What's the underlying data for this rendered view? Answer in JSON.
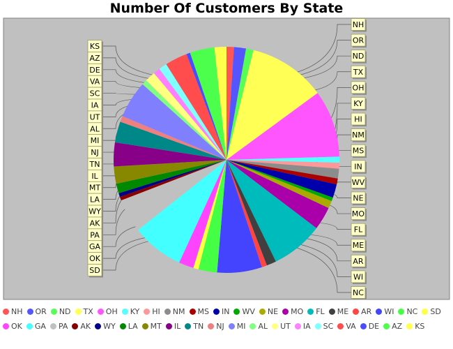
{
  "chart_data": {
    "type": "pie",
    "title": "Number Of Customers By State",
    "slices": [
      {
        "label": "NH",
        "value": 1.0,
        "color": "#ff5555"
      },
      {
        "label": "OR",
        "value": 1.6,
        "color": "#5555ff"
      },
      {
        "label": "ND",
        "value": 1.0,
        "color": "#55ff55"
      },
      {
        "label": "TX",
        "value": 10.4,
        "color": "#ffff55"
      },
      {
        "label": "OH",
        "value": 9.0,
        "color": "#ff55ff"
      },
      {
        "label": "KY",
        "value": 0.8,
        "color": "#55ffff"
      },
      {
        "label": "HI",
        "value": 0.8,
        "color": "#ff9999"
      },
      {
        "label": "NM",
        "value": 1.3,
        "color": "#8c8c8c"
      },
      {
        "label": "MS",
        "value": 0.8,
        "color": "#aa0000"
      },
      {
        "label": "IN",
        "value": 1.8,
        "color": "#0000aa"
      },
      {
        "label": "WV",
        "value": 0.5,
        "color": "#00aa00"
      },
      {
        "label": "NE",
        "value": 1.0,
        "color": "#aaaa00"
      },
      {
        "label": "MO",
        "value": 3.1,
        "color": "#aa00aa"
      },
      {
        "label": "FL",
        "value": 7.0,
        "color": "#00bbbb"
      },
      {
        "label": "ME",
        "value": 1.3,
        "color": "#404040"
      },
      {
        "label": "AR",
        "value": 0.7,
        "color": "#ff4444"
      },
      {
        "label": "WI",
        "value": 6.0,
        "color": "#4444ff"
      },
      {
        "label": "NC",
        "value": 2.5,
        "color": "#44ff44"
      },
      {
        "label": "SD",
        "value": 0.7,
        "color": "#ffff44"
      },
      {
        "label": "OK",
        "value": 2.0,
        "color": "#ff44ff"
      },
      {
        "label": "GA",
        "value": 7.0,
        "color": "#44ffff"
      },
      {
        "label": "PA",
        "value": 4.5,
        "color": "#c0c0c0"
      },
      {
        "label": "AK",
        "value": 0.5,
        "color": "#880000"
      },
      {
        "label": "WY",
        "value": 0.5,
        "color": "#000088"
      },
      {
        "label": "LA",
        "value": 1.3,
        "color": "#008800"
      },
      {
        "label": "MT",
        "value": 2.3,
        "color": "#888800"
      },
      {
        "label": "IL",
        "value": 3.2,
        "color": "#880088"
      },
      {
        "label": "TN",
        "value": 2.8,
        "color": "#008888"
      },
      {
        "label": "NJ",
        "value": 0.8,
        "color": "#f08080"
      },
      {
        "label": "MI",
        "value": 5.0,
        "color": "#8080ff"
      },
      {
        "label": "AL",
        "value": 0.7,
        "color": "#80ff80"
      },
      {
        "label": "UT",
        "value": 1.4,
        "color": "#ffff80"
      },
      {
        "label": "IA",
        "value": 0.9,
        "color": "#ff80ff"
      },
      {
        "label": "SC",
        "value": 1.1,
        "color": "#80ffff"
      },
      {
        "label": "VA",
        "value": 3.0,
        "color": "#ff4c4c"
      },
      {
        "label": "DE",
        "value": 0.5,
        "color": "#4c4cff"
      },
      {
        "label": "AZ",
        "value": 3.3,
        "color": "#4cff4c"
      },
      {
        "label": "KS",
        "value": 1.6,
        "color": "#ffff4c"
      }
    ],
    "right_labels": [
      "NH",
      "OR",
      "ND",
      "TX",
      "OH",
      "KY",
      "HI",
      "NM",
      "MS",
      "IN",
      "WV",
      "NE",
      "MO",
      "FL",
      "ME",
      "AR",
      "WI",
      "NC"
    ],
    "left_labels": [
      "KS",
      "AZ",
      "DE",
      "VA",
      "SC",
      "IA",
      "UT",
      "AL",
      "MI",
      "NJ",
      "TN",
      "IL",
      "MT",
      "LA",
      "WY",
      "AK",
      "PA",
      "GA",
      "OK",
      "SD"
    ],
    "legend_placement": "bottom",
    "plot_background": "#c0c0c0"
  }
}
